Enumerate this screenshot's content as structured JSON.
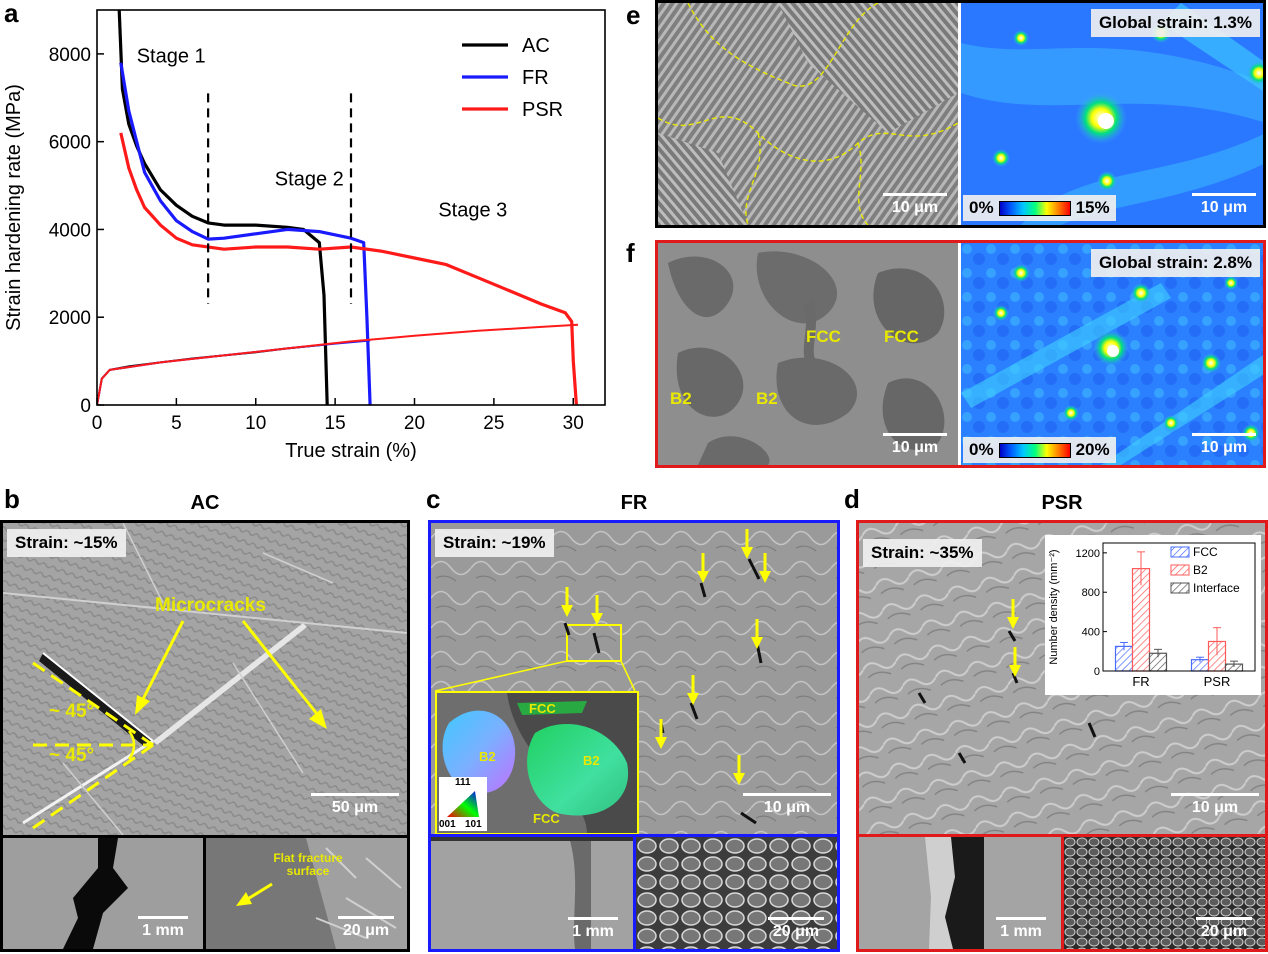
{
  "panels": {
    "a": {
      "label": "a"
    },
    "b": {
      "label": "b",
      "title": "AC",
      "strain_badge": "Strain: ~15%",
      "annotation": "Microcracks",
      "angle1": "~ 45°",
      "angle2": "~ 45°",
      "scale_main": "50 μm",
      "scale_sub1": "1 mm",
      "scale_sub2": "20 μm",
      "flat_label": "Flat fracture surface"
    },
    "c": {
      "label": "c",
      "title": "FR",
      "strain_badge": "Strain: ~19%",
      "scale_main": "10 μm",
      "scale_sub1": "1 mm",
      "scale_sub2": "20 μm",
      "inset": {
        "fcc_top": "FCC",
        "b2_left": "B2",
        "b2_right": "B2",
        "fcc_bottom": "FCC",
        "ipf_top": "111",
        "ipf_left": "001",
        "ipf_right": "101"
      }
    },
    "d": {
      "label": "d",
      "title": "PSR",
      "strain_badge": "Strain: ~35%",
      "scale_main": "10 μm",
      "scale_sub1": "1 mm",
      "scale_sub2": "20 μm"
    },
    "e": {
      "label": "e",
      "global_strain": "Global strain: 1.3%",
      "scale_left": "10 μm",
      "scale_right": "10 μm",
      "cb_min": "0%",
      "cb_max": "15%"
    },
    "f": {
      "label": "f",
      "global_strain": "Global strain: 2.8%",
      "scale_left": "10 μm",
      "scale_right": "10 μm",
      "cb_min": "0%",
      "cb_max": "20%",
      "phase_labels": [
        "FCC",
        "FCC",
        "B2",
        "B2"
      ]
    }
  },
  "colors": {
    "AC": "#000000",
    "FR": "#1a1aff",
    "PSR": "#ff1a1a",
    "highlight": "#ffff00"
  },
  "chart_data": [
    {
      "type": "line",
      "panel": "a",
      "xlabel": "True strain (%)",
      "ylabel": "Strain hardening rate (MPa)",
      "xlim": [
        0,
        32
      ],
      "ylim": [
        0,
        9000
      ],
      "xticks": [
        0,
        5,
        10,
        15,
        20,
        25,
        30
      ],
      "yticks": [
        0,
        2000,
        4000,
        6000,
        8000
      ],
      "legend": "top-right",
      "stages": [
        {
          "label": "Stage 1",
          "x": 2.5,
          "y": 7800
        },
        {
          "label": "Stage 2",
          "x": 11.2,
          "y": 5000
        },
        {
          "label": "Stage 3",
          "x": 21.5,
          "y": 4300
        }
      ],
      "stage_dividers": [
        7,
        16
      ],
      "series": [
        {
          "name": "AC",
          "color": "#000000",
          "hardening": [
            [
              1.4,
              9000
            ],
            [
              1.6,
              7200
            ],
            [
              2,
              6400
            ],
            [
              2.5,
              5900
            ],
            [
              3,
              5500
            ],
            [
              4,
              4900
            ],
            [
              5,
              4550
            ],
            [
              6,
              4300
            ],
            [
              7,
              4150
            ],
            [
              8,
              4100
            ],
            [
              10,
              4100
            ],
            [
              12,
              4050
            ],
            [
              13,
              4000
            ],
            [
              14,
              3700
            ],
            [
              14.3,
              2500
            ],
            [
              14.5,
              0
            ]
          ],
          "flow": [
            [
              0,
              0
            ],
            [
              0.3,
              600
            ],
            [
              0.8,
              800
            ],
            [
              2,
              880
            ],
            [
              4,
              970
            ],
            [
              6,
              1060
            ],
            [
              8,
              1130
            ],
            [
              10,
              1200
            ],
            [
              12,
              1290
            ],
            [
              14.5,
              1380
            ]
          ]
        },
        {
          "name": "FR",
          "color": "#1a1aff",
          "hardening": [
            [
              1.5,
              7800
            ],
            [
              2,
              6700
            ],
            [
              2.5,
              6000
            ],
            [
              3,
              5300
            ],
            [
              4,
              4650
            ],
            [
              5,
              4200
            ],
            [
              6,
              3950
            ],
            [
              7,
              3780
            ],
            [
              8,
              3800
            ],
            [
              10,
              3900
            ],
            [
              12,
              4000
            ],
            [
              14,
              3950
            ],
            [
              16,
              3800
            ],
            [
              16.8,
              3700
            ],
            [
              17,
              2000
            ],
            [
              17.2,
              0
            ]
          ],
          "flow": [
            [
              0,
              0
            ],
            [
              0.3,
              600
            ],
            [
              0.8,
              800
            ],
            [
              4,
              970
            ],
            [
              8,
              1130
            ],
            [
              12,
              1290
            ],
            [
              15,
              1400
            ],
            [
              17.2,
              1470
            ]
          ]
        },
        {
          "name": "PSR",
          "color": "#ff1a1a",
          "hardening": [
            [
              1.5,
              6200
            ],
            [
              2,
              5400
            ],
            [
              2.5,
              4900
            ],
            [
              3,
              4500
            ],
            [
              4,
              4100
            ],
            [
              5,
              3800
            ],
            [
              6,
              3650
            ],
            [
              8,
              3550
            ],
            [
              10,
              3600
            ],
            [
              12,
              3600
            ],
            [
              14,
              3550
            ],
            [
              16,
              3600
            ],
            [
              18,
              3500
            ],
            [
              20,
              3350
            ],
            [
              22,
              3200
            ],
            [
              24,
              2900
            ],
            [
              26,
              2600
            ],
            [
              28,
              2300
            ],
            [
              29.5,
              2100
            ],
            [
              29.9,
              1900
            ],
            [
              30,
              1000
            ],
            [
              30.2,
              0
            ]
          ],
          "flow": [
            [
              0,
              0
            ],
            [
              0.3,
              600
            ],
            [
              0.8,
              800
            ],
            [
              4,
              970
            ],
            [
              8,
              1130
            ],
            [
              12,
              1290
            ],
            [
              16,
              1450
            ],
            [
              20,
              1580
            ],
            [
              24,
              1690
            ],
            [
              28,
              1780
            ],
            [
              30.3,
              1830
            ]
          ]
        }
      ]
    },
    {
      "type": "bar",
      "panel": "d-inset",
      "ylabel": "Number density (mm⁻²)",
      "categories": [
        "FR",
        "PSR"
      ],
      "ylim": [
        0,
        1300
      ],
      "yticks": [
        0,
        400,
        800,
        1200
      ],
      "legend": "top-right",
      "series": [
        {
          "name": "FCC",
          "color": "#4a6cff",
          "values": [
            250,
            115
          ],
          "err": [
            40,
            25
          ]
        },
        {
          "name": "B2",
          "color": "#ff5a5a",
          "values": [
            1040,
            300
          ],
          "err": [
            170,
            140
          ]
        },
        {
          "name": "Interface",
          "color": "#555555",
          "values": [
            180,
            70
          ],
          "err": [
            40,
            30
          ]
        }
      ]
    }
  ]
}
